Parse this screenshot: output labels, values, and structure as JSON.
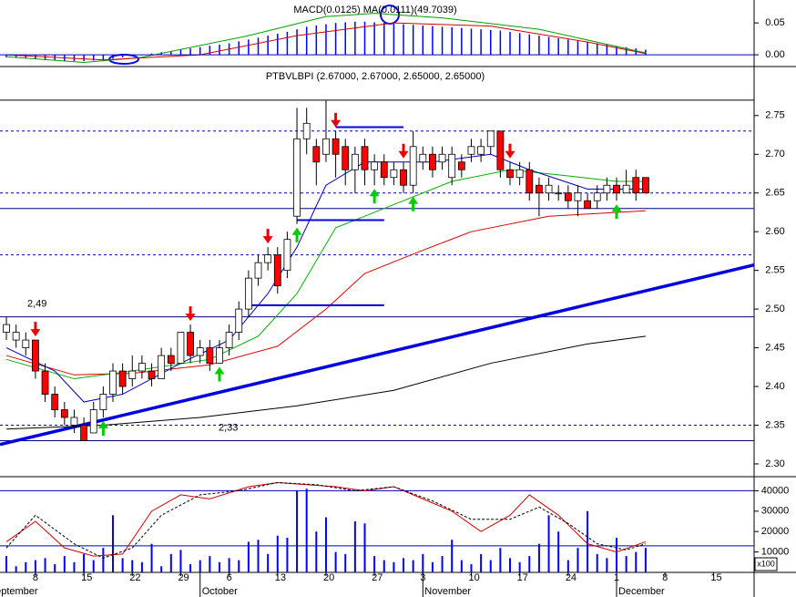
{
  "chart_data": {
    "type": "candlestick",
    "title": "PTBVLBPI (2.67000, 2.67000, 2.65000, 2.65000)",
    "x": [
      0,
      1,
      2,
      3,
      4,
      5,
      6,
      7,
      8,
      9,
      10,
      11,
      12,
      13,
      14,
      15,
      16,
      17,
      18,
      19,
      20,
      21,
      22,
      23,
      24,
      25,
      26,
      27,
      28,
      29,
      30,
      31,
      32,
      33,
      34,
      35,
      36,
      37,
      38,
      39,
      40,
      41,
      42,
      43,
      44,
      45,
      46,
      47,
      48,
      49,
      50,
      51,
      52,
      53,
      54,
      55,
      56,
      57,
      58,
      59,
      60,
      61,
      62,
      63,
      64,
      65,
      66
    ],
    "xlim": [
      -0.66,
      77.2
    ],
    "xticks": [
      {
        "value": 3,
        "label": "8"
      },
      {
        "value": 8,
        "label": "15"
      },
      {
        "value": 13,
        "label": "22"
      },
      {
        "value": 18,
        "label": "29"
      },
      {
        "value": 23,
        "label": "6"
      },
      {
        "value": 28,
        "label": "13"
      },
      {
        "value": 33,
        "label": "20"
      },
      {
        "value": 38,
        "label": "27"
      },
      {
        "value": 43,
        "label": "3"
      },
      {
        "value": 48,
        "label": "10"
      },
      {
        "value": 53,
        "label": "17"
      },
      {
        "value": 58,
        "label": "24"
      },
      {
        "value": 63,
        "label": "1"
      },
      {
        "value": 68,
        "label": "8"
      },
      {
        "value": 73,
        "label": "15"
      }
    ],
    "months": [
      {
        "value": -2,
        "label": "September"
      },
      {
        "value": 20,
        "label": "October"
      },
      {
        "value": 43,
        "label": "November"
      },
      {
        "value": 63,
        "label": "December"
      }
    ],
    "macd": {
      "title": "MACD(0.0125) MA(0.0111)(49.7039)",
      "ylim": [
        -0.017,
        0.086
      ],
      "yticks": [
        {
          "value": 0,
          "label": "0.00"
        },
        0.05
      ],
      "color": "#0000ff",
      "histogram": [
        -0.004,
        -0.005,
        -0.006,
        -0.007,
        -0.008,
        -0.009,
        -0.01,
        -0.01,
        -0.01,
        -0.009,
        -0.008,
        -0.006,
        -0.004,
        -0.002,
        0.0,
        0.002,
        0.004,
        0.006,
        0.008,
        0.01,
        0.012,
        0.014,
        0.016,
        0.018,
        0.021,
        0.024,
        0.027,
        0.03,
        0.033,
        0.036,
        0.04,
        0.044,
        0.046,
        0.048,
        0.05,
        0.051,
        0.052,
        0.052,
        0.051,
        0.05,
        0.049,
        0.048,
        0.047,
        0.046,
        0.045,
        0.044,
        0.043,
        0.042,
        0.041,
        0.04,
        0.039,
        0.038,
        0.036,
        0.034,
        0.032,
        0.03,
        0.028,
        0.026,
        0.024,
        0.022,
        0.02,
        0.018,
        0.016,
        0.014,
        0.012,
        0.01,
        0.008
      ],
      "lines": [
        {
          "color": "#00a000",
          "x": [
            0,
            8,
            14,
            25,
            33,
            38,
            45,
            55,
            66
          ],
          "values": [
            -0.003,
            -0.012,
            -0.004,
            0.03,
            0.06,
            0.065,
            0.058,
            0.04,
            0.003
          ]
        },
        {
          "color": "#d00000",
          "x": [
            0,
            10,
            20,
            30,
            40,
            50,
            60,
            66
          ],
          "values": [
            0.0,
            -0.008,
            0.0,
            0.03,
            0.05,
            0.045,
            0.02,
            0.002
          ]
        }
      ]
    },
    "price": {
      "ylim": [
        2.287,
        2.811
      ],
      "yticks": [
        {
          "value": 2.3,
          "label": "2.30"
        },
        2.35,
        {
          "value": 2.4,
          "label": "2.40"
        },
        2.45,
        {
          "value": 2.5,
          "label": "2.50"
        },
        2.55,
        {
          "value": 2.6,
          "label": "2.60"
        },
        2.65,
        {
          "value": 2.7,
          "label": "2.70"
        },
        2.75
      ],
      "up_color": "#ffffff",
      "down_color": "#ff0000",
      "open": [
        2.47,
        2.46,
        2.45,
        2.46,
        2.42,
        2.39,
        2.37,
        2.35,
        2.35,
        2.34,
        2.37,
        2.39,
        2.42,
        2.41,
        2.42,
        2.42,
        2.41,
        2.44,
        2.43,
        2.47,
        2.44,
        2.45,
        2.43,
        2.45,
        2.47,
        2.5,
        2.54,
        2.56,
        2.57,
        2.55,
        2.62,
        2.72,
        2.71,
        2.7,
        2.72,
        2.71,
        2.68,
        2.71,
        2.68,
        2.69,
        2.67,
        2.68,
        2.66,
        2.69,
        2.7,
        2.69,
        2.67,
        2.69,
        2.7,
        2.7,
        2.71,
        2.73,
        2.68,
        2.67,
        2.68,
        2.66,
        2.65,
        2.65,
        2.65,
        2.64,
        2.64,
        2.64,
        2.65,
        2.66,
        2.65,
        2.67,
        2.67
      ],
      "high": [
        2.49,
        2.48,
        2.47,
        2.46,
        2.43,
        2.4,
        2.38,
        2.37,
        2.36,
        2.38,
        2.4,
        2.43,
        2.43,
        2.44,
        2.44,
        2.43,
        2.45,
        2.45,
        2.47,
        2.48,
        2.46,
        2.46,
        2.46,
        2.48,
        2.51,
        2.55,
        2.57,
        2.58,
        2.58,
        2.6,
        2.76,
        2.76,
        2.72,
        2.77,
        2.73,
        2.72,
        2.71,
        2.72,
        2.7,
        2.7,
        2.69,
        2.69,
        2.73,
        2.71,
        2.71,
        2.71,
        2.71,
        2.7,
        2.72,
        2.72,
        2.73,
        2.73,
        2.69,
        2.69,
        2.69,
        2.67,
        2.67,
        2.66,
        2.66,
        2.66,
        2.65,
        2.66,
        2.67,
        2.67,
        2.68,
        2.68,
        2.67
      ],
      "low": [
        2.46,
        2.45,
        2.44,
        2.41,
        2.38,
        2.36,
        2.35,
        2.34,
        2.33,
        2.34,
        2.36,
        2.38,
        2.39,
        2.4,
        2.41,
        2.4,
        2.41,
        2.42,
        2.43,
        2.43,
        2.43,
        2.42,
        2.43,
        2.44,
        2.46,
        2.49,
        2.53,
        2.55,
        2.52,
        2.54,
        2.61,
        2.7,
        2.66,
        2.69,
        2.67,
        2.66,
        2.65,
        2.66,
        2.66,
        2.66,
        2.66,
        2.65,
        2.65,
        2.68,
        2.67,
        2.68,
        2.66,
        2.67,
        2.69,
        2.69,
        2.7,
        2.67,
        2.66,
        2.66,
        2.64,
        2.62,
        2.64,
        2.64,
        2.63,
        2.62,
        2.63,
        2.63,
        2.64,
        2.64,
        2.65,
        2.64,
        2.65
      ],
      "close": [
        2.48,
        2.47,
        2.46,
        2.42,
        2.39,
        2.37,
        2.36,
        2.36,
        2.33,
        2.37,
        2.39,
        2.42,
        2.4,
        2.42,
        2.43,
        2.41,
        2.44,
        2.43,
        2.47,
        2.44,
        2.45,
        2.43,
        2.45,
        2.47,
        2.5,
        2.54,
        2.56,
        2.57,
        2.53,
        2.59,
        2.72,
        2.74,
        2.69,
        2.72,
        2.7,
        2.68,
        2.7,
        2.68,
        2.69,
        2.67,
        2.68,
        2.66,
        2.71,
        2.7,
        2.68,
        2.7,
        2.7,
        2.68,
        2.71,
        2.71,
        2.73,
        2.68,
        2.67,
        2.68,
        2.65,
        2.65,
        2.66,
        2.65,
        2.64,
        2.65,
        2.63,
        2.65,
        2.66,
        2.65,
        2.66,
        2.65,
        2.65
      ],
      "moving_averages": [
        {
          "color": "#000000",
          "x": [
            0,
            10,
            20,
            30,
            40,
            50,
            60,
            66
          ],
          "values": [
            2.345,
            2.35,
            2.36,
            2.375,
            2.395,
            2.43,
            2.455,
            2.465
          ]
        },
        {
          "color": "#e00000",
          "x": [
            0,
            7,
            13,
            21,
            28,
            33,
            37,
            43,
            48,
            56,
            66
          ],
          "values": [
            2.44,
            2.415,
            2.417,
            2.428,
            2.452,
            2.5,
            2.546,
            2.576,
            2.6,
            2.62,
            2.627
          ]
        },
        {
          "color": "#00b000",
          "x": [
            0,
            7,
            13,
            21,
            26,
            30,
            34,
            40,
            46,
            52,
            58,
            63,
            66
          ],
          "values": [
            2.435,
            2.41,
            2.42,
            2.435,
            2.465,
            2.52,
            2.605,
            2.635,
            2.665,
            2.68,
            2.672,
            2.665,
            2.665
          ]
        },
        {
          "color": "#0000c0",
          "x": [
            0,
            5,
            8,
            12,
            18,
            23,
            27,
            30,
            33,
            37,
            44,
            50,
            54,
            60,
            66
          ],
          "values": [
            2.45,
            2.42,
            2.38,
            2.39,
            2.43,
            2.46,
            2.52,
            2.58,
            2.66,
            2.69,
            2.69,
            2.7,
            2.68,
            2.655,
            2.655
          ]
        }
      ],
      "hlines": [
        {
          "value": 2.77,
          "color": "#000000",
          "style": "solid"
        },
        {
          "value": 2.73,
          "color": "#0000c0",
          "style": "dashed"
        },
        {
          "value": 2.65,
          "color": "#0000c0",
          "style": "dashed"
        },
        {
          "value": 2.63,
          "color": "#000080",
          "style": "solid"
        },
        {
          "value": 2.57,
          "color": "#0000c0",
          "style": "dashed"
        },
        {
          "value": 2.49,
          "color": "#000080",
          "style": "solid"
        },
        {
          "value": 2.35,
          "color": "#0000c0",
          "style": "dashed"
        },
        {
          "value": 2.33,
          "color": "#000080",
          "style": "solid"
        }
      ],
      "levels": [
        {
          "value": 2.49,
          "label": "2,49"
        },
        {
          "value": 2.33,
          "label": "2,33"
        }
      ],
      "segments": [
        {
          "x": [
            34,
            41
          ],
          "value": 2.735
        },
        {
          "x": [
            30,
            39
          ],
          "value": 2.615
        },
        {
          "x": [
            25,
            39
          ],
          "value": 2.505
        }
      ],
      "trendline": {
        "color": "#0000e0",
        "x": [
          -0.66,
          77.2
        ],
        "values": [
          2.325,
          2.557
        ]
      },
      "sell_signals": [
        3,
        19,
        27,
        34,
        41,
        52
      ],
      "buy_signals": [
        10,
        22,
        30,
        38,
        42,
        63
      ]
    },
    "volume": {
      "ylim": [
        0,
        46000
      ],
      "yticks": [
        10000,
        20000,
        30000,
        40000
      ],
      "unit_label": "x100",
      "color": "#0000ff",
      "values": [
        8000,
        3000,
        5000,
        6000,
        7000,
        4000,
        8000,
        5000,
        9000,
        6000,
        12000,
        28000,
        7000,
        6000,
        5000,
        14000,
        3000,
        9000,
        11000,
        4000,
        6000,
        8000,
        5000,
        7000,
        6000,
        15000,
        16000,
        9000,
        18000,
        17000,
        40000,
        41000,
        20000,
        27000,
        10000,
        9000,
        25000,
        24000,
        8000,
        6000,
        5000,
        7000,
        6000,
        9000,
        5000,
        8000,
        16000,
        6000,
        4000,
        9000,
        6000,
        12000,
        7000,
        5000,
        8000,
        14000,
        28000,
        20000,
        6000,
        12000,
        30000,
        9000,
        7000,
        17000,
        8000,
        10000,
        12000
      ],
      "hlines": [
        40000,
        13000
      ],
      "oscillator": [
        {
          "color": "#d00000",
          "style": "solid",
          "x": [
            0,
            3,
            6,
            9,
            12,
            15,
            18,
            21,
            25,
            28,
            31,
            34,
            37,
            40,
            43,
            46,
            49,
            52,
            54,
            57,
            60,
            63,
            66
          ],
          "values": [
            15000,
            25000,
            12000,
            8000,
            9000,
            30000,
            38000,
            36000,
            42000,
            44000,
            43000,
            42000,
            40000,
            42000,
            36000,
            30000,
            20000,
            28000,
            38000,
            28000,
            14000,
            10000,
            15000
          ]
        },
        {
          "color": "#000000",
          "style": "dashed",
          "x": [
            0,
            3,
            7,
            10,
            13,
            16,
            20,
            24,
            28,
            32,
            36,
            40,
            44,
            48,
            52,
            55,
            58,
            61,
            64,
            66
          ],
          "values": [
            12000,
            28000,
            14000,
            7000,
            12000,
            28000,
            38000,
            40000,
            44000,
            43000,
            40000,
            42000,
            35000,
            26000,
            26000,
            32000,
            24000,
            14000,
            11000,
            14000
          ]
        }
      ]
    }
  }
}
